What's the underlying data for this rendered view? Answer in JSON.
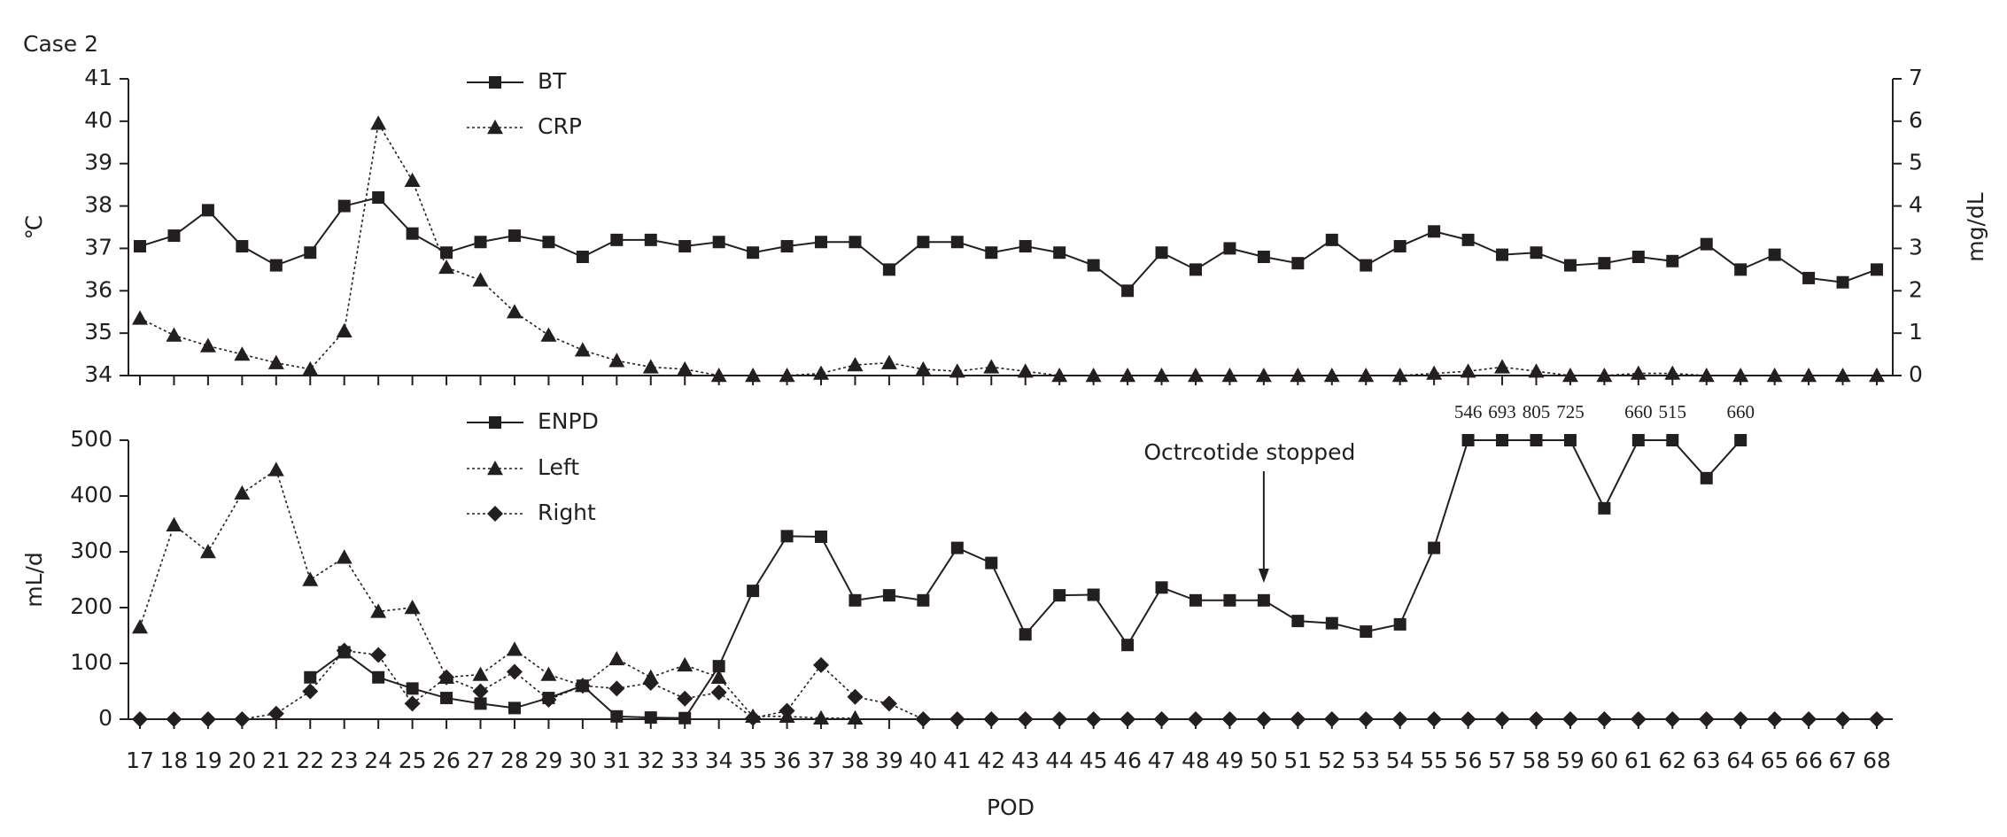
{
  "chart_data": [
    {
      "type": "line",
      "title": "Case 2",
      "ylabel": "℃",
      "y2label": "mg/dL",
      "ylim": [
        34,
        41
      ],
      "yticks": [
        34,
        35,
        36,
        37,
        38,
        39,
        40,
        41
      ],
      "y2lim": [
        0,
        7
      ],
      "y2ticks": [
        0,
        1,
        2,
        3,
        4,
        5,
        6,
        7
      ],
      "legend": "top-left",
      "series": [
        {
          "name": "BT",
          "color": "#231f20",
          "marker": "square",
          "line_style": "solid",
          "values": [
            37.05,
            37.3,
            37.9,
            37.05,
            36.6,
            36.9,
            38,
            38.2,
            37.35,
            36.9,
            37.15,
            37.3,
            37.15,
            36.8,
            37.2,
            37.2,
            37.05,
            37.15,
            36.9,
            37.05,
            37.15,
            37.15,
            36.5,
            37.15,
            37.15,
            36.9,
            37.05,
            36.9,
            36.6,
            36.0,
            36.9,
            36.5,
            37.0,
            36.8,
            36.65,
            37.2,
            36.6,
            37.05,
            37.4,
            37.2,
            36.85,
            36.9,
            36.6,
            36.65,
            36.8,
            36.7,
            37.1,
            36.5,
            36.85,
            36.3,
            36.2,
            36.5
          ]
        },
        {
          "name": "CRP",
          "color": "#231f20",
          "marker": "triangle",
          "line_style": "dotted",
          "axis": "y2",
          "values": [
            1.35,
            0.95,
            0.7,
            0.5,
            0.3,
            0.15,
            1.05,
            5.95,
            4.6,
            2.55,
            2.25,
            1.5,
            0.95,
            0.6,
            0.35,
            0.2,
            0.15,
            0,
            0,
            0,
            0.05,
            0.25,
            0.3,
            0.15,
            0.1,
            0.2,
            0.1,
            0,
            0,
            0,
            0,
            0,
            0,
            0,
            0,
            0,
            0,
            0,
            0.05,
            0.1,
            0.2,
            0.1,
            0,
            0,
            0.05,
            0.05,
            0,
            0,
            0,
            0,
            0,
            0
          ]
        }
      ]
    },
    {
      "type": "line",
      "ylabel": "mL/d",
      "xlabel": "POD",
      "categories": [
        "17",
        "18",
        "19",
        "20",
        "21",
        "22",
        "23",
        "24",
        "25",
        "26",
        "27",
        "28",
        "29",
        "30",
        "31",
        "32",
        "33",
        "34",
        "35",
        "36",
        "37",
        "38",
        "39",
        "40",
        "41",
        "42",
        "43",
        "44",
        "45",
        "46",
        "47",
        "48",
        "49",
        "50",
        "51",
        "52",
        "53",
        "54",
        "55",
        "56",
        "57",
        "58",
        "59",
        "60",
        "61",
        "62",
        "63",
        "64",
        "65",
        "66",
        "67",
        "68"
      ],
      "ylim": [
        0,
        500
      ],
      "yticks": [
        0,
        100,
        200,
        300,
        400,
        500
      ],
      "legend": "top-left",
      "annotations": [
        {
          "text": "Octrcotide stopped",
          "category": "50"
        }
      ],
      "series": [
        {
          "name": "ENPD",
          "color": "#231f20",
          "marker": "square",
          "line_style": "solid",
          "values": [
            null,
            null,
            null,
            null,
            null,
            75,
            120,
            75,
            55,
            38,
            28,
            20,
            38,
            60,
            5,
            3,
            2,
            95,
            230,
            328,
            327,
            213,
            222,
            213,
            307,
            280,
            152,
            222,
            223,
            133,
            236,
            213,
            213,
            213,
            176,
            172,
            157,
            170,
            307,
            546,
            693,
            805,
            725,
            378,
            660,
            515,
            432,
            660,
            null,
            null,
            null,
            null
          ],
          "value_labels": [
            null,
            null,
            null,
            null,
            null,
            null,
            null,
            null,
            null,
            null,
            null,
            null,
            null,
            null,
            null,
            null,
            null,
            null,
            null,
            null,
            null,
            null,
            null,
            null,
            null,
            null,
            null,
            null,
            null,
            null,
            null,
            null,
            null,
            null,
            null,
            null,
            null,
            null,
            null,
            "546",
            "693",
            "805",
            "725",
            null,
            "660",
            "515",
            null,
            "660",
            null,
            null,
            null,
            null
          ]
        },
        {
          "name": "Left",
          "color": "#231f20",
          "marker": "triangle",
          "line_style": "dotted",
          "values": [
            165,
            348,
            300,
            405,
            447,
            250,
            290,
            193,
            200,
            75,
            80,
            125,
            80,
            60,
            108,
            75,
            97,
            75,
            5,
            5,
            2,
            2,
            null,
            null,
            null,
            null,
            null,
            null,
            null,
            null,
            null,
            null,
            null,
            null,
            null,
            null,
            null,
            null,
            null,
            null,
            null,
            null,
            null,
            null,
            null,
            null,
            null,
            null,
            null,
            null,
            null,
            null
          ]
        },
        {
          "name": "Right",
          "color": "#231f20",
          "marker": "diamond",
          "line_style": "dotted",
          "values": [
            0,
            0,
            0,
            0,
            10,
            50,
            123,
            115,
            28,
            75,
            50,
            85,
            35,
            60,
            55,
            65,
            37,
            48,
            2,
            15,
            97,
            40,
            28,
            0,
            0,
            0,
            0,
            0,
            0,
            0,
            0,
            0,
            0,
            0,
            0,
            0,
            0,
            0,
            0,
            0,
            0,
            0,
            0,
            0,
            0,
            0,
            0,
            0,
            0,
            0,
            0,
            0
          ]
        }
      ]
    }
  ]
}
